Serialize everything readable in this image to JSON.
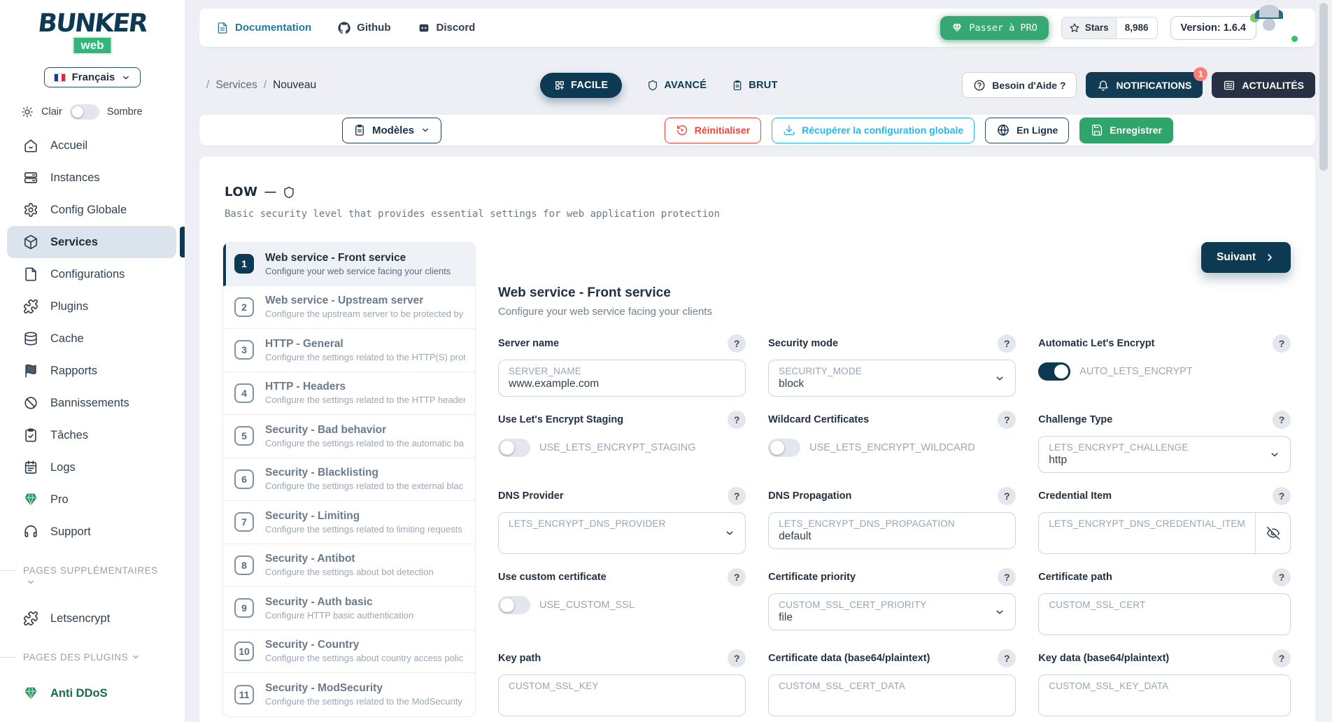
{
  "app": {
    "name": "BUNKER",
    "sub": "web"
  },
  "topbar": {
    "links": [
      {
        "label": "Documentation",
        "icon": "document-icon"
      },
      {
        "label": "Github",
        "icon": "github-icon"
      },
      {
        "label": "Discord",
        "icon": "discord-icon"
      }
    ],
    "pro": {
      "label": "Passer à PRO",
      "icon": "diamond-white-icon"
    },
    "stars": {
      "label": "Stars",
      "count": "8,986",
      "icon": "star-icon"
    },
    "version": "Version: 1.6.4"
  },
  "breadcrumb": {
    "sep": "/",
    "items": [
      "Services",
      "Nouveau"
    ]
  },
  "mode_tabs": [
    {
      "label": "FACILE",
      "icon": "grid-plus-icon",
      "active": true
    },
    {
      "label": "AVANCÉ",
      "icon": "shield-icon",
      "active": false
    },
    {
      "label": "BRUT",
      "icon": "clipboard-icon",
      "active": false
    }
  ],
  "header_actions": {
    "help": {
      "label": "Besoin d'Aide ?",
      "icon": "circle-question-icon"
    },
    "notifications": {
      "label": "NOTIFICATIONS",
      "icon": "bell-icon",
      "badge": "1"
    },
    "news": {
      "label": "ACTUALITÉS",
      "icon": "newspaper-icon"
    }
  },
  "action_bar": {
    "templates": {
      "label": "Modèles",
      "icon": "clipboard-icon",
      "chevron": "chevron-down-icon"
    },
    "reset": {
      "label": "Réinitialiser",
      "icon": "rotate-ccw-icon"
    },
    "fetch": {
      "label": "Récupérer la configuration globale",
      "icon": "download-icon"
    },
    "online": {
      "label": "En Ligne",
      "icon": "globe-icon"
    },
    "save": {
      "label": "Enregistrer",
      "icon": "save-icon"
    }
  },
  "sidebar": {
    "language": {
      "label": "Français",
      "icon": "french-flag-icon",
      "chevron": "chevron-down-icon"
    },
    "theme": {
      "icon": "sun-icon",
      "light": "Clair",
      "dark": "Sombre",
      "mode": "light"
    },
    "items": [
      {
        "label": "Accueil",
        "icon": "home-icon"
      },
      {
        "label": "Instances",
        "icon": "servers-icon"
      },
      {
        "label": "Config Globale",
        "icon": "gear-icon"
      },
      {
        "label": "Services",
        "icon": "cube-icon",
        "active": true
      },
      {
        "label": "Configurations",
        "icon": "file-icon"
      },
      {
        "label": "Plugins",
        "icon": "puzzle-icon"
      },
      {
        "label": "Cache",
        "icon": "database-icon"
      },
      {
        "label": "Rapports",
        "icon": "flag-icon"
      },
      {
        "label": "Bannissements",
        "icon": "ban-icon"
      },
      {
        "label": "Tâches",
        "icon": "clipboard-check-icon"
      },
      {
        "label": "Logs",
        "icon": "calendar-icon"
      },
      {
        "label": "Pro",
        "icon": "diamond-green-icon"
      },
      {
        "label": "Support",
        "icon": "headset-icon"
      }
    ],
    "sections": [
      {
        "label": "PAGES SUPPLÉMENTAIRES",
        "icon": "chevron-down-icon",
        "wrap": true,
        "items": [
          {
            "label": "Letsencrypt",
            "icon": "puzzle-icon",
            "pro": false
          }
        ]
      },
      {
        "label": "PAGES DES PLUGINS",
        "icon": "chevron-down-icon",
        "wrap": false,
        "items": [
          {
            "label": "Anti DDoS",
            "icon": "diamond-green-icon",
            "pro": true
          }
        ]
      }
    ]
  },
  "wizard": {
    "level": "LOW",
    "dash": "—",
    "level_icon": "shield-icon",
    "description": "Basic security level that provides essential settings for web application protection",
    "next": {
      "label": "Suivant",
      "icon": "chevron-right-icon"
    },
    "steps": [
      {
        "num": "1",
        "title": "Web service - Front service",
        "desc": "Configure your web service facing your clients",
        "active": true
      },
      {
        "num": "2",
        "title": "Web service - Upstream server",
        "desc": "Configure the upstream server to be protected by",
        "active": false
      },
      {
        "num": "3",
        "title": "HTTP - General",
        "desc": "Configure the settings related to the HTTP(S) prot",
        "active": false
      },
      {
        "num": "4",
        "title": "HTTP - Headers",
        "desc": "Configure the settings related to the HTTP header",
        "active": false
      },
      {
        "num": "5",
        "title": "Security - Bad behavior",
        "desc": "Configure the settings related to the automatic ba",
        "active": false
      },
      {
        "num": "6",
        "title": "Security - Blacklisting",
        "desc": "Configure the settings related to the external blac",
        "active": false
      },
      {
        "num": "7",
        "title": "Security - Limiting",
        "desc": "Configure the settings related to limiting requests",
        "active": false
      },
      {
        "num": "8",
        "title": "Security - Antibot",
        "desc": "Configure the settings about bot detection",
        "active": false
      },
      {
        "num": "9",
        "title": "Security - Auth basic",
        "desc": "Configure HTTP basic authentication",
        "active": false
      },
      {
        "num": "10",
        "title": "Security - Country",
        "desc": "Configure the settings about country access polic",
        "active": false
      },
      {
        "num": "11",
        "title": "Security - ModSecurity",
        "desc": "Configure the settings related to the ModSecurity",
        "active": false
      }
    ]
  },
  "form": {
    "title": "Web service - Front service",
    "subtitle": "Configure your web service facing your clients",
    "help_glyph": "?",
    "fields": [
      {
        "label": "Server name",
        "type": "input",
        "placeholder": "SERVER_NAME",
        "value": "www.example.com"
      },
      {
        "label": "Security mode",
        "type": "select",
        "placeholder": "SECURITY_MODE",
        "value": "block"
      },
      {
        "label": "Automatic Let's Encrypt",
        "type": "toggle",
        "placeholder": "AUTO_LETS_ENCRYPT",
        "on": true
      },
      {
        "label": "Use Let's Encrypt Staging",
        "type": "toggle",
        "placeholder": "USE_LETS_ENCRYPT_STAGING",
        "on": false
      },
      {
        "label": "Wildcard Certificates",
        "type": "toggle",
        "placeholder": "USE_LETS_ENCRYPT_WILDCARD",
        "on": false
      },
      {
        "label": "Challenge Type",
        "type": "select",
        "placeholder": "LETS_ENCRYPT_CHALLENGE",
        "value": "http"
      },
      {
        "label": "DNS Provider",
        "type": "select",
        "placeholder": "LETS_ENCRYPT_DNS_PROVIDER",
        "value": "",
        "tall": true
      },
      {
        "label": "DNS Propagation",
        "type": "input",
        "placeholder": "LETS_ENCRYPT_DNS_PROPAGATION",
        "value": "default"
      },
      {
        "label": "Credential Item",
        "type": "input",
        "placeholder": "LETS_ENCRYPT_DNS_CREDENTIAL_ITEM",
        "value": "",
        "tall": true,
        "addon": "eye-off-icon"
      },
      {
        "label": "Use custom certificate",
        "type": "toggle",
        "placeholder": "USE_CUSTOM_SSL",
        "on": false
      },
      {
        "label": "Certificate priority",
        "type": "select",
        "placeholder": "CUSTOM_SSL_CERT_PRIORITY",
        "value": "file"
      },
      {
        "label": "Certificate path",
        "type": "input",
        "placeholder": "CUSTOM_SSL_CERT",
        "value": "",
        "tall": true
      },
      {
        "label": "Key path",
        "type": "input",
        "placeholder": "CUSTOM_SSL_KEY",
        "value": "",
        "tall": true
      },
      {
        "label": "Certificate data (base64/plaintext)",
        "type": "input",
        "placeholder": "CUSTOM_SSL_CERT_DATA",
        "value": "",
        "tall": true
      },
      {
        "label": "Key data (base64/plaintext)",
        "type": "input",
        "placeholder": "CUSTOM_SSL_KEY_DATA",
        "value": "",
        "tall": true
      }
    ]
  },
  "colors": {
    "accent": "#0d3a52",
    "green": "#2fa46b",
    "cyan": "#29b6e8",
    "red": "#f04438",
    "badge": "#f77f76"
  }
}
